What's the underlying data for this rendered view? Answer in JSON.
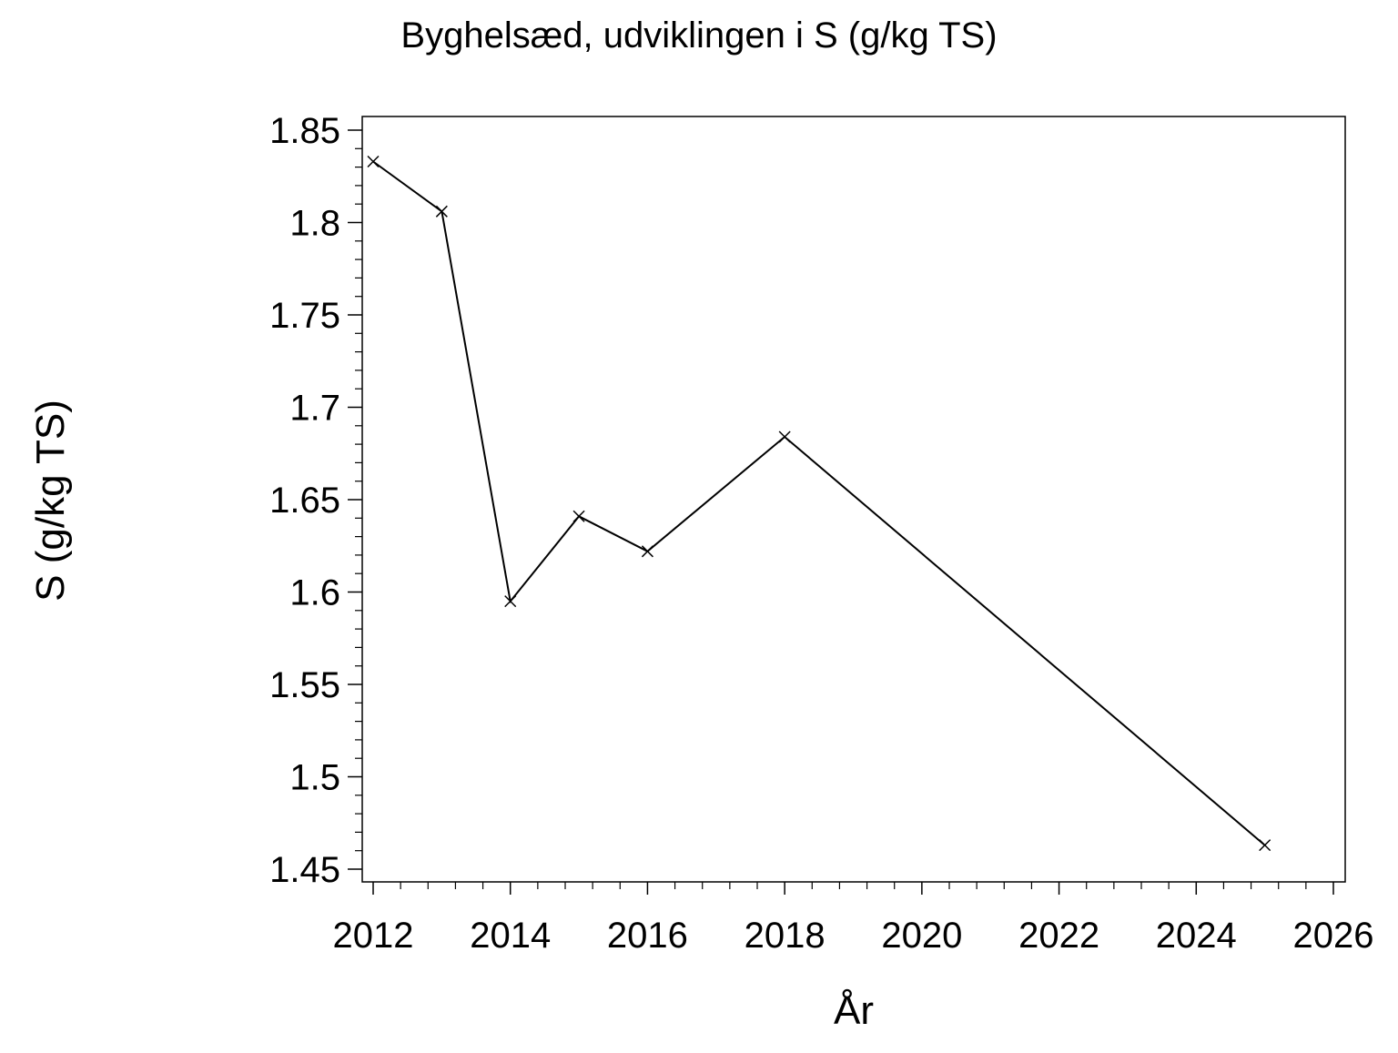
{
  "chart_data": {
    "type": "line",
    "title": "Byghelsæd, udviklingen i S (g/kg TS)",
    "xlabel": "År",
    "ylabel": "S (g/kg TS)",
    "xlim": [
      2012,
      2026
    ],
    "ylim": [
      1.45,
      1.85
    ],
    "x_ticks": [
      2012,
      2014,
      2016,
      2018,
      2020,
      2022,
      2024,
      2026
    ],
    "x_tick_labels": [
      "2012",
      "2014",
      "2016",
      "2018",
      "2020",
      "2022",
      "2024",
      "2026"
    ],
    "y_ticks": [
      1.45,
      1.5,
      1.55,
      1.6,
      1.65,
      1.7,
      1.75,
      1.8,
      1.85
    ],
    "y_tick_labels": [
      "1.45",
      "1.5",
      "1.55",
      "1.6",
      "1.65",
      "1.7",
      "1.75",
      "1.8",
      "1.85"
    ],
    "grid": false,
    "marker": "x",
    "series": [
      {
        "x": [
          2012,
          2013,
          2014,
          2015,
          2016,
          2018,
          2025
        ],
        "y": [
          1.833,
          1.806,
          1.595,
          1.641,
          1.622,
          1.684,
          1.463
        ]
      }
    ],
    "line_color": "#000000"
  }
}
